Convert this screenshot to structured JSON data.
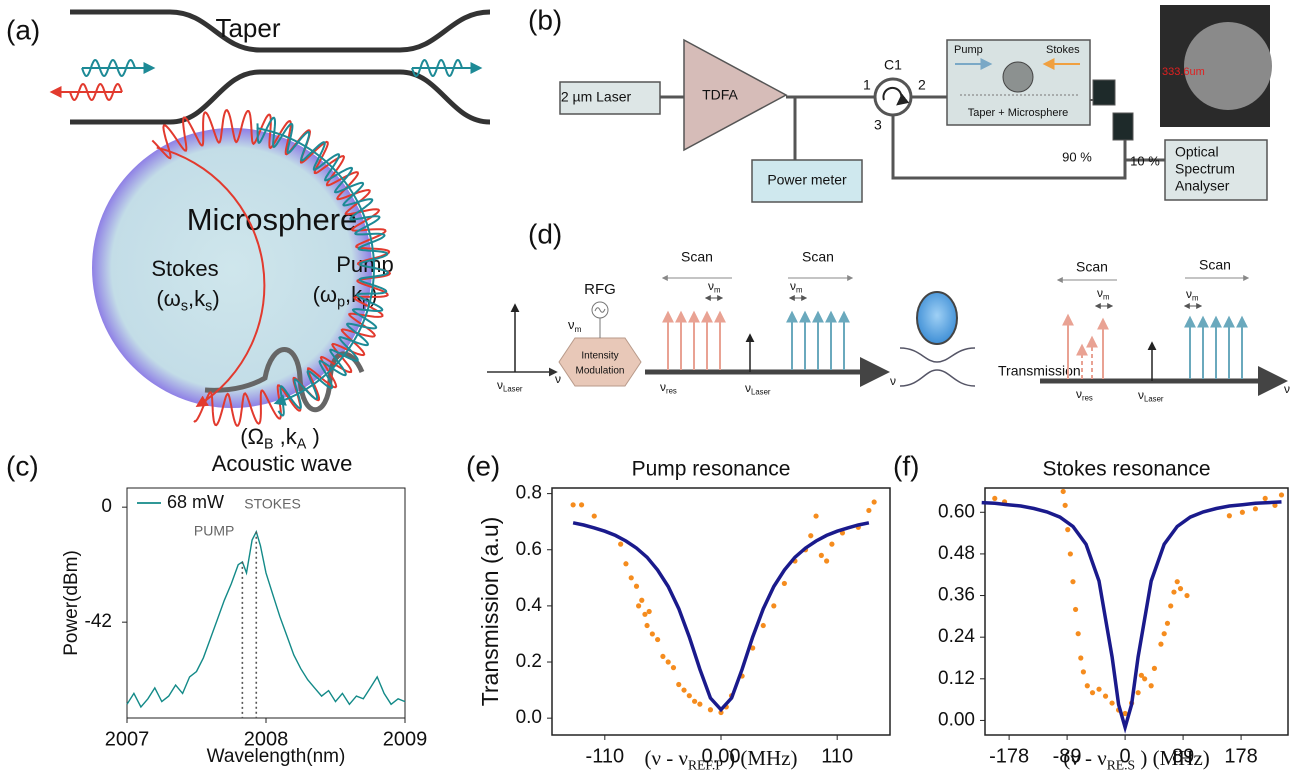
{
  "panels": {
    "a": {
      "label": "(a)",
      "taper": "Taper",
      "microsphere": "Microsphere",
      "stokes": "Stokes",
      "stokes_symbol": [
        "(ω",
        "s",
        ",k",
        "s",
        ")"
      ],
      "pump": "Pump",
      "pump_symbol": [
        "(ω",
        "p",
        ",k",
        "p",
        ")"
      ],
      "acoustic_symbol": [
        "(Ω",
        "B",
        " ,k",
        "A",
        " )"
      ],
      "acoustic": "Acoustic wave"
    },
    "b": {
      "label": "(b)",
      "laser": "2 µm  Laser",
      "amplifier": "TDFA",
      "circulator": "C1",
      "ports": [
        "1",
        "2",
        "3"
      ],
      "pump": "Pump",
      "stokes": "Stokes",
      "device": "Taper + Microsphere",
      "power_meter": "Power meter",
      "split": [
        "90 %",
        "10 %"
      ],
      "osa": [
        "Optical",
        "Spectrum",
        "Analyser"
      ],
      "image_scale": "333.6um"
    },
    "c": {
      "label": "(c)"
    },
    "d": {
      "label": "(d)",
      "rfg": "RFG",
      "modulator": [
        "Intensity",
        "Modulation"
      ],
      "scan_labels": [
        "Scan",
        "Scan",
        "Scan",
        "Scan"
      ],
      "spacing_labels": [
        [
          "ν",
          "m"
        ],
        [
          "ν",
          "m"
        ],
        [
          "ν",
          "m"
        ],
        [
          "ν",
          "m"
        ],
        [
          "ν",
          "m"
        ]
      ],
      "laser_labels": [
        [
          "ν",
          "Laser"
        ],
        [
          "ν",
          "Laser"
        ],
        [
          "ν",
          "Laser"
        ]
      ],
      "res_labels": [
        [
          "ν",
          "res"
        ],
        [
          "ν",
          "res"
        ]
      ],
      "axis_labels": [
        "ν",
        "ν",
        "ν"
      ],
      "transmission": "Transmission"
    },
    "e": {
      "label": "(e)"
    },
    "f": {
      "label": "(f)"
    }
  },
  "chart_data": [
    {
      "type": "line",
      "xlabel": "Wavelength(nm)",
      "ylabel": "Power(dBm)",
      "legend": "upper left",
      "x": [
        2007,
        2007.05,
        2007.1,
        2007.15,
        2007.2,
        2007.25,
        2007.3,
        2007.35,
        2007.4,
        2007.45,
        2007.5,
        2007.55,
        2007.6,
        2007.65,
        2007.7,
        2007.75,
        2007.8,
        2007.83,
        2007.86,
        2007.9,
        2007.93,
        2007.96,
        2008,
        2008.05,
        2008.1,
        2008.15,
        2008.2,
        2008.25,
        2008.3,
        2008.35,
        2008.4,
        2008.45,
        2008.5,
        2008.55,
        2008.6,
        2008.65,
        2008.7,
        2008.75,
        2008.8,
        2008.85,
        2008.9,
        2008.95,
        2009
      ],
      "series": [
        {
          "name": "68 mW",
          "color": "#138a88",
          "values": [
            -72,
            -68,
            -73,
            -70,
            -66,
            -71,
            -69,
            -65,
            -68,
            -62,
            -60,
            -55,
            -48,
            -41,
            -34,
            -28,
            -21,
            -20,
            -24,
            -12,
            -9,
            -14,
            -24,
            -32,
            -40,
            -47,
            -54,
            -59,
            -63,
            -66,
            -69,
            -67,
            -71,
            -68,
            -72,
            -69,
            -70,
            -66,
            -62,
            -68,
            -72,
            -70,
            -71
          ]
        }
      ],
      "annotations": [
        {
          "text": "PUMP",
          "x": 2007.83,
          "y": -20
        },
        {
          "text": "STOKES",
          "x": 2007.93,
          "y": -9
        }
      ],
      "xlim": [
        2007,
        2009
      ],
      "xticks": [
        2007,
        2008,
        2009
      ],
      "ylim": [
        -77,
        7
      ],
      "yticks": [
        0,
        -42
      ]
    },
    {
      "type": "scatter",
      "title": "Pump resonance",
      "ylabel": "Transmission (a.u)",
      "xlabel": [
        "(ν - ν",
        "REF.P",
        " ) (MHz)"
      ],
      "series": [
        {
          "type": "scatter",
          "color": "#f58c1e",
          "x": [
            -140,
            -132,
            -120,
            -95,
            -90,
            -85,
            -80,
            -78,
            -75,
            -72,
            -70,
            -68,
            -65,
            -60,
            -55,
            -50,
            -45,
            -40,
            -35,
            -30,
            -25,
            -20,
            -10,
            0,
            5,
            10,
            20,
            30,
            40,
            50,
            60,
            70,
            80,
            85,
            90,
            95,
            100,
            105,
            115,
            130,
            140,
            145
          ],
          "values": [
            0.76,
            0.76,
            0.72,
            0.62,
            0.55,
            0.5,
            0.47,
            0.4,
            0.42,
            0.37,
            0.33,
            0.38,
            0.3,
            0.28,
            0.22,
            0.2,
            0.18,
            0.12,
            0.1,
            0.08,
            0.06,
            0.05,
            0.03,
            0.02,
            0.04,
            0.08,
            0.15,
            0.25,
            0.33,
            0.4,
            0.48,
            0.56,
            0.6,
            0.65,
            0.72,
            0.58,
            0.56,
            0.62,
            0.66,
            0.68,
            0.74,
            0.77
          ]
        },
        {
          "type": "line",
          "color": "#1a1a8c",
          "x": [
            -140,
            -130,
            -120,
            -110,
            -100,
            -90,
            -80,
            -70,
            -60,
            -50,
            -40,
            -30,
            -20,
            -10,
            0,
            10,
            20,
            30,
            40,
            50,
            60,
            70,
            80,
            90,
            100,
            110,
            120,
            130,
            140
          ],
          "values": [
            0.696,
            0.688,
            0.678,
            0.666,
            0.651,
            0.631,
            0.606,
            0.573,
            0.528,
            0.469,
            0.39,
            0.289,
            0.174,
            0.072,
            0.03,
            0.072,
            0.174,
            0.289,
            0.39,
            0.469,
            0.528,
            0.573,
            0.606,
            0.631,
            0.651,
            0.666,
            0.678,
            0.688,
            0.696
          ]
        }
      ],
      "xlim": [
        -160,
        160
      ],
      "xticks": [
        -110,
        {
          "value": 0,
          "label": "0.00"
        },
        110
      ],
      "ylim": [
        -0.06,
        0.82
      ],
      "yticks": [
        {
          "value": 0,
          "label": "0.0"
        },
        0.2,
        0.4,
        0.6,
        0.8
      ]
    },
    {
      "type": "scatter",
      "title": "Stokes resonance",
      "xlabel": [
        "(ν - ν",
        "RE.S",
        " ) (MHz)"
      ],
      "series": [
        {
          "type": "scatter",
          "color": "#f58c1e",
          "x": [
            -200,
            -185,
            -95,
            -92,
            -88,
            -84,
            -80,
            -76,
            -72,
            -68,
            -64,
            -58,
            -50,
            -40,
            -30,
            -20,
            -10,
            0,
            10,
            20,
            25,
            30,
            40,
            45,
            55,
            60,
            65,
            70,
            75,
            80,
            85,
            95,
            160,
            180,
            200,
            215,
            230,
            240
          ],
          "values": [
            0.64,
            0.63,
            0.66,
            0.62,
            0.55,
            0.48,
            0.4,
            0.32,
            0.25,
            0.18,
            0.14,
            0.1,
            0.08,
            0.09,
            0.07,
            0.05,
            0.03,
            0.02,
            0.05,
            0.08,
            0.13,
            0.12,
            0.1,
            0.15,
            0.22,
            0.25,
            0.28,
            0.33,
            0.37,
            0.4,
            0.38,
            0.36,
            0.59,
            0.6,
            0.61,
            0.64,
            0.62,
            0.65
          ]
        },
        {
          "type": "line",
          "color": "#1a1a8c",
          "x": [
            -220,
            -200,
            -180,
            -160,
            -140,
            -120,
            -100,
            -80,
            -60,
            -40,
            -20,
            -10,
            0,
            10,
            20,
            40,
            60,
            80,
            100,
            120,
            140,
            160,
            180,
            200,
            220,
            240
          ],
          "values": [
            0.628,
            0.626,
            0.622,
            0.618,
            0.611,
            0.601,
            0.586,
            0.559,
            0.508,
            0.402,
            0.183,
            0.046,
            -0.02,
            0.046,
            0.183,
            0.402,
            0.508,
            0.559,
            0.586,
            0.601,
            0.611,
            0.618,
            0.622,
            0.626,
            0.628,
            0.63
          ]
        }
      ],
      "xlim": [
        -215,
        250
      ],
      "xticks": [
        -178,
        -89,
        0,
        89,
        178
      ],
      "ylim": [
        -0.042,
        0.67
      ],
      "yticks": [
        {
          "value": 0,
          "label": "0.00"
        },
        0.12,
        0.24,
        0.36,
        0.48,
        {
          "value": 0.6,
          "label": "0.60"
        }
      ]
    }
  ]
}
